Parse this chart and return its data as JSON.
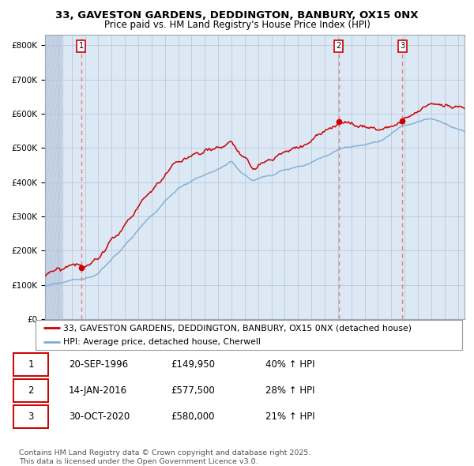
{
  "title": "33, GAVESTON GARDENS, DEDDINGTON, BANBURY, OX15 0NX",
  "subtitle": "Price paid vs. HM Land Registry's House Price Index (HPI)",
  "xlim_start": 1994.0,
  "xlim_end": 2025.5,
  "ylim": [
    0,
    830000
  ],
  "yticks": [
    0,
    100000,
    200000,
    300000,
    400000,
    500000,
    600000,
    700000,
    800000
  ],
  "ytick_labels": [
    "£0",
    "£100K",
    "£200K",
    "£300K",
    "£400K",
    "£500K",
    "£600K",
    "£700K",
    "£800K"
  ],
  "red_color": "#cc0000",
  "blue_color": "#7aadd4",
  "dashed_color": "#e87070",
  "background_color": "#dde8f5",
  "hatch_bg_color": "#c8d5e8",
  "grid_color": "#b8c8dc",
  "sale_dates": [
    1996.72,
    2016.04,
    2020.83
  ],
  "sale_prices": [
    149950,
    577500,
    580000
  ],
  "sale_labels": [
    "1",
    "2",
    "3"
  ],
  "legend_line1": "33, GAVESTON GARDENS, DEDDINGTON, BANBURY, OX15 0NX (detached house)",
  "legend_line2": "HPI: Average price, detached house, Cherwell",
  "table_rows": [
    [
      "1",
      "20-SEP-1996",
      "£149,950",
      "40% ↑ HPI"
    ],
    [
      "2",
      "14-JAN-2016",
      "£577,500",
      "28% ↑ HPI"
    ],
    [
      "3",
      "30-OCT-2020",
      "£580,000",
      "21% ↑ HPI"
    ]
  ],
  "footnote": "Contains HM Land Registry data © Crown copyright and database right 2025.\nThis data is licensed under the Open Government Licence v3.0.",
  "title_fontsize": 9.5,
  "subtitle_fontsize": 8.5,
  "tick_fontsize": 7.5,
  "legend_fontsize": 7.8,
  "table_fontsize": 8.5
}
